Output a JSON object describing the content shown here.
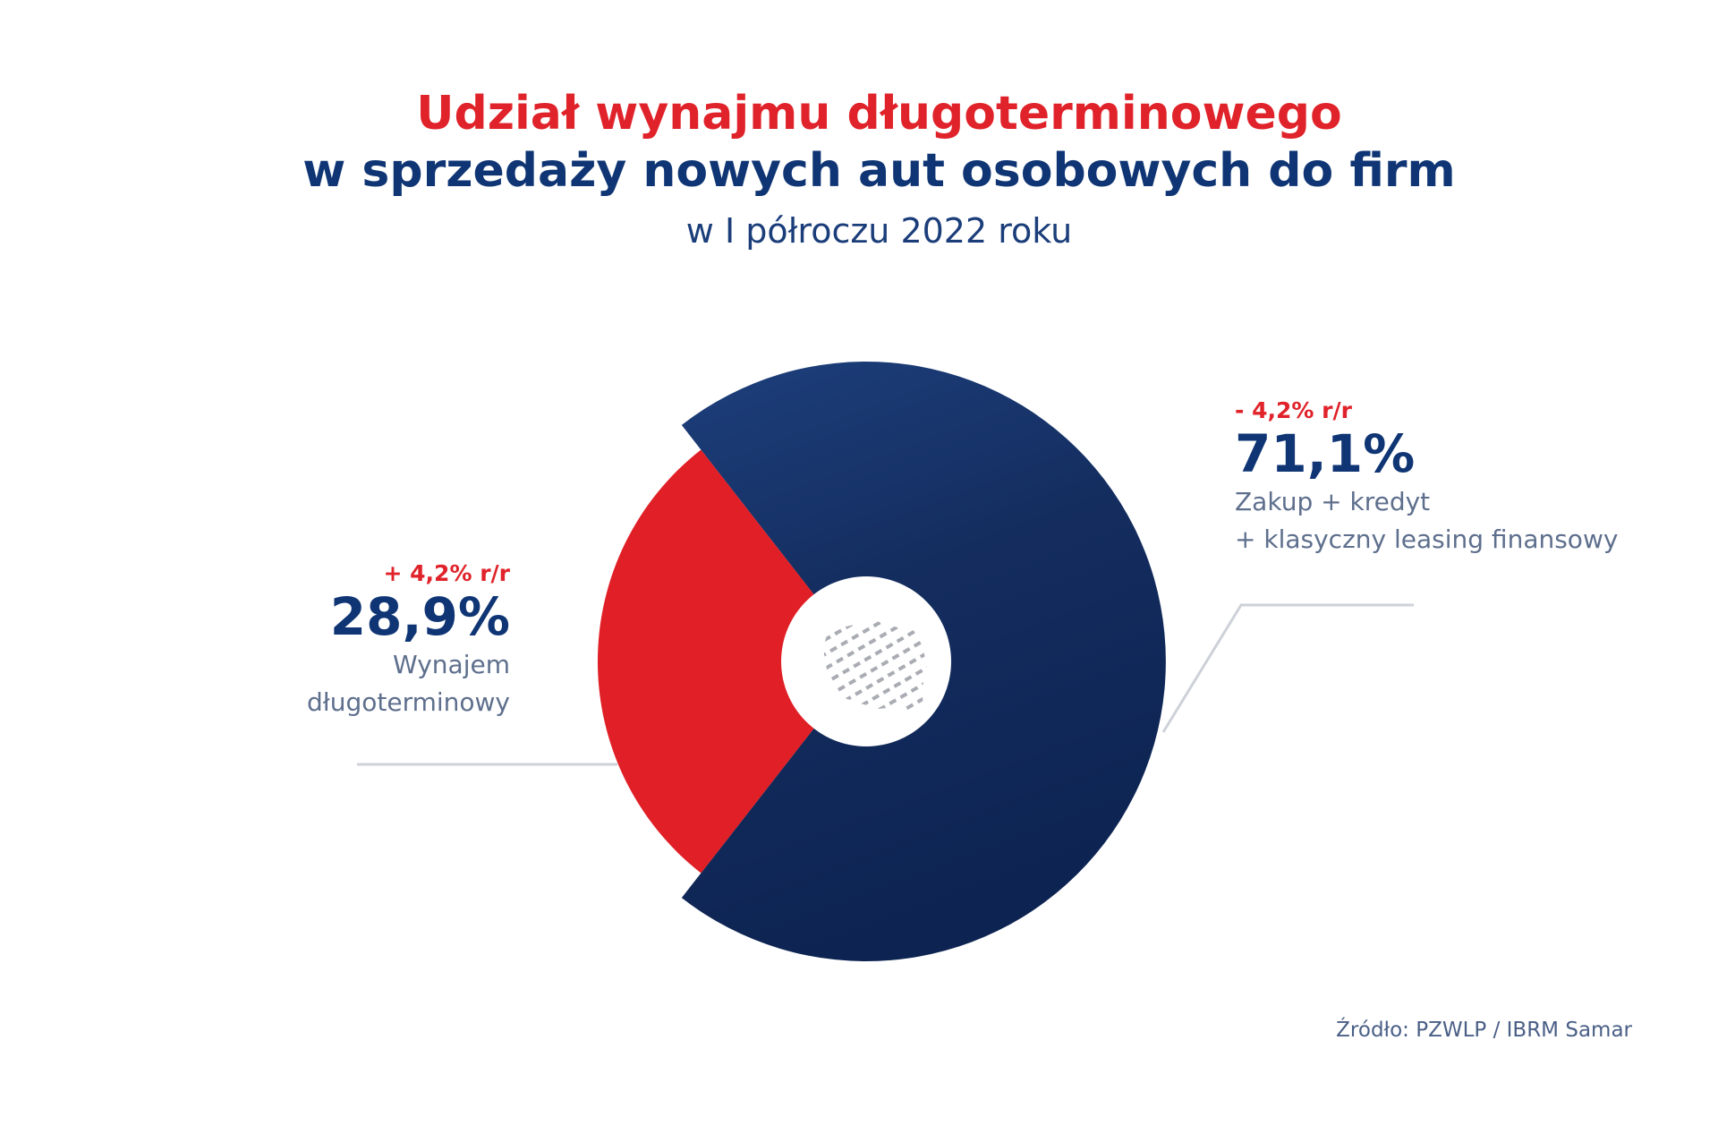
{
  "title": {
    "line1": "Udział wynajmu długoterminowego",
    "line2": "w sprzedaży nowych aut osobowych do firm",
    "subtitle": "w I półroczu 2022 roku"
  },
  "chart_data": {
    "type": "pie",
    "slices": [
      {
        "value": 28.9,
        "value_label": "28,9%",
        "change": "+ 4,2% r/r",
        "desc_lines": [
          "Wynajem",
          "długoterminowy"
        ],
        "color": "#e01f26"
      },
      {
        "value": 71.1,
        "value_label": "71,1%",
        "change": "- 4,2% r/r",
        "desc_lines": [
          "Zakup + kredyt",
          "+ klasyczny leasing finansowy"
        ],
        "color": "#0f2b5e"
      }
    ],
    "center_icon": "poland-map-icon"
  },
  "source": "Źródło: PZWLP / IBRM Samar"
}
